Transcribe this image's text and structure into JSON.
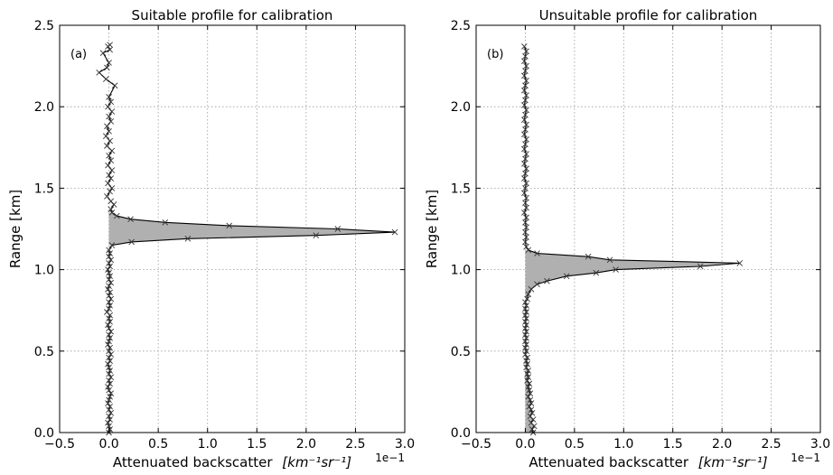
{
  "chart_data": [
    {
      "type": "line",
      "panel_label": "(a)",
      "title": "Suitable profile for calibration",
      "xlabel_text": "Attenuated backscatter",
      "xlabel_unit": "[km⁻¹sr⁻¹]",
      "x_multiplier": "1e−1",
      "ylabel": "Range [km]",
      "xlim": [
        -0.5,
        3.0
      ],
      "ylim": [
        0.0,
        2.5
      ],
      "x_ticks": [
        "−0.5",
        "0.0",
        "0.5",
        "1.0",
        "1.5",
        "2.0",
        "2.5",
        "3.0"
      ],
      "y_ticks": [
        "0.0",
        "0.5",
        "1.0",
        "1.5",
        "2.0",
        "2.5"
      ],
      "grid": true,
      "fill": "between profile and x=0 around the peak",
      "fill_color": "#b0b0b0",
      "line_color": "#000000",
      "marker": "x",
      "peak": {
        "x": 2.9,
        "y": 1.23
      },
      "points": [
        [
          0.0,
          0.0
        ],
        [
          0.01,
          0.02
        ],
        [
          0.0,
          0.04
        ],
        [
          -0.01,
          0.06
        ],
        [
          0.01,
          0.08
        ],
        [
          0.0,
          0.1
        ],
        [
          0.02,
          0.12
        ],
        [
          0.0,
          0.14
        ],
        [
          0.01,
          0.16
        ],
        [
          -0.01,
          0.18
        ],
        [
          0.0,
          0.2
        ],
        [
          0.01,
          0.22
        ],
        [
          0.02,
          0.24
        ],
        [
          0.0,
          0.26
        ],
        [
          -0.01,
          0.28
        ],
        [
          0.01,
          0.3
        ],
        [
          0.0,
          0.32
        ],
        [
          0.02,
          0.34
        ],
        [
          0.0,
          0.36
        ],
        [
          0.01,
          0.38
        ],
        [
          0.0,
          0.4
        ],
        [
          -0.01,
          0.42
        ],
        [
          0.01,
          0.44
        ],
        [
          0.0,
          0.46
        ],
        [
          0.02,
          0.48
        ],
        [
          0.0,
          0.5
        ],
        [
          0.01,
          0.52
        ],
        [
          -0.01,
          0.54
        ],
        [
          0.0,
          0.56
        ],
        [
          0.01,
          0.58
        ],
        [
          0.0,
          0.6
        ],
        [
          0.02,
          0.62
        ],
        [
          0.0,
          0.64
        ],
        [
          -0.01,
          0.66
        ],
        [
          0.01,
          0.68
        ],
        [
          0.0,
          0.7
        ],
        [
          0.01,
          0.72
        ],
        [
          -0.02,
          0.74
        ],
        [
          0.0,
          0.76
        ],
        [
          0.01,
          0.78
        ],
        [
          0.0,
          0.8
        ],
        [
          0.02,
          0.82
        ],
        [
          0.0,
          0.84
        ],
        [
          0.01,
          0.86
        ],
        [
          -0.01,
          0.88
        ],
        [
          0.0,
          0.9
        ],
        [
          0.02,
          0.92
        ],
        [
          0.0,
          0.94
        ],
        [
          0.01,
          0.96
        ],
        [
          0.0,
          0.98
        ],
        [
          -0.01,
          1.0
        ],
        [
          0.01,
          1.02
        ],
        [
          0.0,
          1.04
        ],
        [
          0.02,
          1.06
        ],
        [
          0.0,
          1.08
        ],
        [
          0.01,
          1.1
        ],
        [
          0.0,
          1.12
        ],
        [
          0.03,
          1.15
        ],
        [
          0.23,
          1.17
        ],
        [
          0.8,
          1.19
        ],
        [
          2.1,
          1.21
        ],
        [
          2.9,
          1.23
        ],
        [
          2.32,
          1.25
        ],
        [
          1.22,
          1.27
        ],
        [
          0.57,
          1.29
        ],
        [
          0.22,
          1.31
        ],
        [
          0.08,
          1.33
        ],
        [
          0.03,
          1.35
        ],
        [
          0.02,
          1.37
        ],
        [
          0.05,
          1.4
        ],
        [
          0.02,
          1.42
        ],
        [
          -0.02,
          1.45
        ],
        [
          0.01,
          1.48
        ],
        [
          0.03,
          1.5
        ],
        [
          -0.01,
          1.53
        ],
        [
          0.02,
          1.56
        ],
        [
          0.0,
          1.58
        ],
        [
          0.03,
          1.61
        ],
        [
          -0.01,
          1.64
        ],
        [
          0.02,
          1.67
        ],
        [
          0.0,
          1.7
        ],
        [
          0.03,
          1.73
        ],
        [
          -0.02,
          1.76
        ],
        [
          0.01,
          1.79
        ],
        [
          -0.03,
          1.82
        ],
        [
          0.0,
          1.85
        ],
        [
          -0.02,
          1.88
        ],
        [
          0.02,
          1.91
        ],
        [
          0.0,
          1.94
        ],
        [
          0.03,
          1.97
        ],
        [
          -0.01,
          2.0
        ],
        [
          0.02,
          2.03
        ],
        [
          0.0,
          2.06
        ],
        [
          0.06,
          2.13
        ],
        [
          -0.03,
          2.17
        ],
        [
          -0.1,
          2.21
        ],
        [
          -0.02,
          2.24
        ],
        [
          0.0,
          2.27
        ],
        [
          -0.06,
          2.33
        ],
        [
          0.01,
          2.35
        ],
        [
          -0.01,
          2.37
        ],
        [
          0.01,
          2.38
        ]
      ]
    },
    {
      "type": "line",
      "panel_label": "(b)",
      "title": "Unsuitable profile for calibration",
      "xlabel_text": "Attenuated backscatter",
      "xlabel_unit": "[km⁻¹sr⁻¹]",
      "x_multiplier": "1e−1",
      "ylabel": "Range [km]",
      "xlim": [
        -0.5,
        3.0
      ],
      "ylim": [
        0.0,
        2.5
      ],
      "x_ticks": [
        "−0.5",
        "0.0",
        "0.5",
        "1.0",
        "1.5",
        "2.0",
        "2.5",
        "3.0"
      ],
      "y_ticks": [
        "0.0",
        "0.5",
        "1.0",
        "1.5",
        "2.0",
        "2.5"
      ],
      "grid": true,
      "fill": "between profile and x=0 from ground to peak region",
      "fill_color": "#b0b0b0",
      "line_color": "#000000",
      "marker": "x",
      "peak": {
        "x": 2.18,
        "y": 1.04
      },
      "points": [
        [
          0.08,
          0.0
        ],
        [
          0.07,
          0.02
        ],
        [
          0.09,
          0.04
        ],
        [
          0.06,
          0.06
        ],
        [
          0.08,
          0.08
        ],
        [
          0.05,
          0.1
        ],
        [
          0.07,
          0.12
        ],
        [
          0.06,
          0.14
        ],
        [
          0.04,
          0.16
        ],
        [
          0.06,
          0.18
        ],
        [
          0.05,
          0.2
        ],
        [
          0.03,
          0.22
        ],
        [
          0.05,
          0.24
        ],
        [
          0.04,
          0.26
        ],
        [
          0.03,
          0.28
        ],
        [
          0.04,
          0.3
        ],
        [
          0.02,
          0.32
        ],
        [
          0.03,
          0.34
        ],
        [
          0.02,
          0.36
        ],
        [
          0.03,
          0.38
        ],
        [
          0.01,
          0.4
        ],
        [
          0.02,
          0.42
        ],
        [
          0.01,
          0.44
        ],
        [
          0.02,
          0.46
        ],
        [
          0.0,
          0.48
        ],
        [
          0.01,
          0.5
        ],
        [
          0.0,
          0.52
        ],
        [
          0.01,
          0.54
        ],
        [
          0.0,
          0.56
        ],
        [
          0.01,
          0.58
        ],
        [
          0.0,
          0.6
        ],
        [
          0.01,
          0.62
        ],
        [
          0.0,
          0.64
        ],
        [
          0.01,
          0.66
        ],
        [
          0.0,
          0.68
        ],
        [
          0.01,
          0.7
        ],
        [
          0.0,
          0.72
        ],
        [
          0.01,
          0.74
        ],
        [
          0.0,
          0.76
        ],
        [
          0.01,
          0.78
        ],
        [
          0.0,
          0.8
        ],
        [
          0.02,
          0.82
        ],
        [
          0.03,
          0.85
        ],
        [
          0.06,
          0.88
        ],
        [
          0.12,
          0.91
        ],
        [
          0.22,
          0.93
        ],
        [
          0.42,
          0.96
        ],
        [
          0.72,
          0.98
        ],
        [
          0.92,
          1.0
        ],
        [
          1.78,
          1.02
        ],
        [
          2.18,
          1.04
        ],
        [
          0.86,
          1.06
        ],
        [
          0.64,
          1.08
        ],
        [
          0.12,
          1.1
        ],
        [
          0.03,
          1.12
        ],
        [
          0.01,
          1.14
        ],
        [
          0.0,
          1.17
        ],
        [
          0.01,
          1.2
        ],
        [
          0.0,
          1.23
        ],
        [
          0.01,
          1.26
        ],
        [
          0.0,
          1.29
        ],
        [
          0.01,
          1.32
        ],
        [
          -0.01,
          1.35
        ],
        [
          0.01,
          1.38
        ],
        [
          0.0,
          1.41
        ],
        [
          0.01,
          1.44
        ],
        [
          -0.01,
          1.47
        ],
        [
          0.0,
          1.5
        ],
        [
          0.01,
          1.53
        ],
        [
          -0.01,
          1.56
        ],
        [
          0.0,
          1.59
        ],
        [
          0.01,
          1.62
        ],
        [
          -0.01,
          1.65
        ],
        [
          0.0,
          1.68
        ],
        [
          0.01,
          1.71
        ],
        [
          -0.01,
          1.74
        ],
        [
          0.0,
          1.77
        ],
        [
          0.01,
          1.8
        ],
        [
          -0.01,
          1.83
        ],
        [
          0.0,
          1.86
        ],
        [
          0.01,
          1.89
        ],
        [
          -0.01,
          1.92
        ],
        [
          0.0,
          1.95
        ],
        [
          0.01,
          1.98
        ],
        [
          -0.01,
          2.01
        ],
        [
          0.0,
          2.04
        ],
        [
          0.01,
          2.07
        ],
        [
          -0.01,
          2.1
        ],
        [
          0.0,
          2.13
        ],
        [
          0.01,
          2.16
        ],
        [
          -0.01,
          2.19
        ],
        [
          0.0,
          2.22
        ],
        [
          0.01,
          2.25
        ],
        [
          -0.01,
          2.28
        ],
        [
          0.0,
          2.31
        ],
        [
          0.01,
          2.34
        ],
        [
          -0.01,
          2.37
        ]
      ]
    }
  ]
}
